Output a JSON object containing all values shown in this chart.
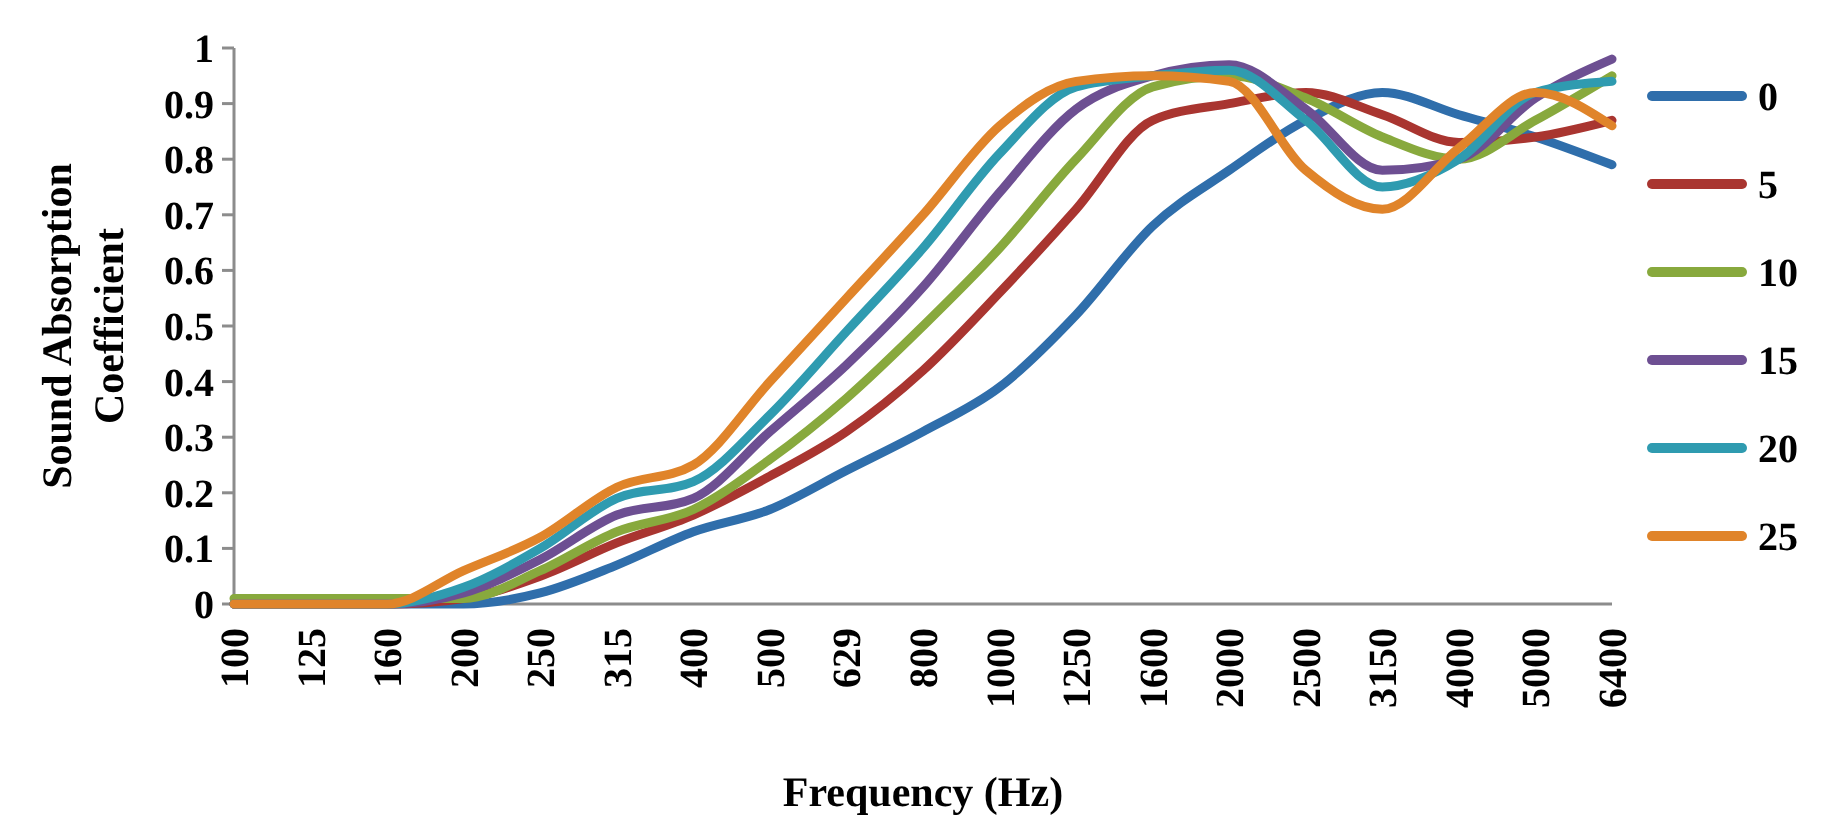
{
  "chart_data": {
    "type": "line",
    "xlabel": "Frequency (Hz)",
    "ylabel": "Sound Absorption Coefficient",
    "categories": [
      "100",
      "125",
      "160",
      "200",
      "250",
      "315",
      "400",
      "500",
      "629",
      "800",
      "1000",
      "1250",
      "1600",
      "2000",
      "2500",
      "3150",
      "4000",
      "5000",
      "6400"
    ],
    "ylim": [
      0,
      1
    ],
    "yticks": [
      0,
      0.1,
      0.2,
      0.3,
      0.4,
      0.5,
      0.6,
      0.7,
      0.8,
      0.9,
      1
    ],
    "grid": false,
    "legend": "right",
    "marker": "none",
    "line_style": "solid",
    "series": [
      {
        "name": "0",
        "color": "#2f6eab",
        "values": [
          0,
          0,
          0,
          0,
          0.02,
          0.07,
          0.13,
          0.17,
          0.24,
          0.31,
          0.39,
          0.52,
          0.68,
          0.78,
          0.87,
          0.92,
          0.88,
          0.84,
          0.79
        ]
      },
      {
        "name": "5",
        "color": "#a93530",
        "values": [
          0,
          0,
          0,
          0.01,
          0.05,
          0.11,
          0.16,
          0.23,
          0.31,
          0.42,
          0.56,
          0.71,
          0.87,
          0.9,
          0.92,
          0.88,
          0.83,
          0.84,
          0.87
        ]
      },
      {
        "name": "10",
        "color": "#88a93d",
        "values": [
          0.01,
          0.01,
          0.01,
          0.01,
          0.06,
          0.13,
          0.17,
          0.26,
          0.37,
          0.5,
          0.64,
          0.8,
          0.93,
          0.95,
          0.91,
          0.84,
          0.8,
          0.87,
          0.95
        ]
      },
      {
        "name": "15",
        "color": "#6d4f92",
        "values": [
          0,
          0,
          0,
          0.02,
          0.08,
          0.16,
          0.19,
          0.31,
          0.43,
          0.57,
          0.74,
          0.89,
          0.95,
          0.97,
          0.89,
          0.78,
          0.8,
          0.91,
          0.98
        ]
      },
      {
        "name": "20",
        "color": "#2f9bb0",
        "values": [
          0,
          0,
          0,
          0.03,
          0.1,
          0.19,
          0.22,
          0.34,
          0.49,
          0.64,
          0.81,
          0.93,
          0.95,
          0.96,
          0.87,
          0.75,
          0.8,
          0.92,
          0.94
        ]
      },
      {
        "name": "25",
        "color": "#e0842a",
        "values": [
          0,
          0,
          0,
          0.06,
          0.12,
          0.21,
          0.25,
          0.4,
          0.55,
          0.7,
          0.86,
          0.94,
          0.95,
          0.94,
          0.78,
          0.71,
          0.82,
          0.92,
          0.86
        ]
      }
    ]
  }
}
